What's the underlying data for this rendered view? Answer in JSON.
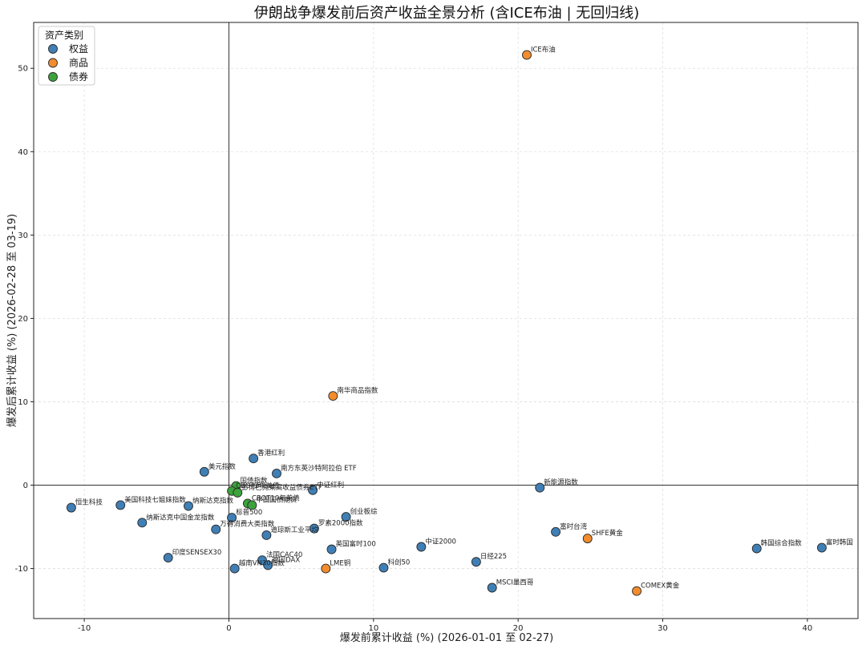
{
  "chart_data": {
    "type": "scatter",
    "title": "伊朗战争爆发前后资产收益全景分析 (含ICE布油 | 无回归线)",
    "xlabel": "爆发前累计收益 (%) (2026-01-01 至 02-27)",
    "ylabel": "爆发后累计收益 (%) (2026-02-28 至 03-19)",
    "xlim": [
      -13.5,
      43.5
    ],
    "ylim": [
      -16,
      55.5
    ],
    "xticks": [
      -10,
      0,
      10,
      20,
      30,
      40
    ],
    "yticks": [
      -10,
      0,
      10,
      20,
      30,
      40,
      50
    ],
    "grid": true,
    "legend": {
      "title": "资产类别",
      "position": "top-left"
    },
    "colors": {
      "权益": "#3f7fb5",
      "商品": "#f28c2e",
      "债券": "#3ca33c"
    },
    "series": [
      {
        "name": "权益",
        "points": [
          {
            "label": "恒生科技",
            "x": -10.9,
            "y": -2.7
          },
          {
            "label": "美国科技七姐妹指数",
            "x": -7.5,
            "y": -2.4
          },
          {
            "label": "纳斯达克指数",
            "x": -2.8,
            "y": -2.5
          },
          {
            "label": "纳斯达克中国金龙指数",
            "x": -6.0,
            "y": -4.5
          },
          {
            "label": "美元指数",
            "x": -1.7,
            "y": 1.6
          },
          {
            "label": "香港红利",
            "x": 1.7,
            "y": 3.2
          },
          {
            "label": "南方东英沙特阿拉伯 ETF",
            "x": 3.3,
            "y": 1.4
          },
          {
            "label": "中证红利",
            "x": 5.8,
            "y": -0.6
          },
          {
            "label": "万得消费大类指数",
            "x": -0.9,
            "y": -5.3
          },
          {
            "label": "标普500",
            "x": 0.2,
            "y": -3.9
          },
          {
            "label": "道琼斯工业平均",
            "x": 2.6,
            "y": -6.0
          },
          {
            "label": "罗素2000指数",
            "x": 5.9,
            "y": -5.2
          },
          {
            "label": "创业板综",
            "x": 8.1,
            "y": -3.8
          },
          {
            "label": "印度SENSEX30",
            "x": -4.2,
            "y": -8.7
          },
          {
            "label": "法国CAC40",
            "x": 2.3,
            "y": -9.0
          },
          {
            "label": "越南VN30指数",
            "x": 0.4,
            "y": -10.0
          },
          {
            "label": "德国DAX",
            "x": 2.7,
            "y": -9.6
          },
          {
            "label": "英国富时100",
            "x": 7.1,
            "y": -7.7
          },
          {
            "label": "科创50",
            "x": 10.7,
            "y": -9.9
          },
          {
            "label": "中证2000",
            "x": 13.3,
            "y": -7.4
          },
          {
            "label": "日经225",
            "x": 17.1,
            "y": -9.2
          },
          {
            "label": "MSCI墨西哥",
            "x": 18.2,
            "y": -12.3
          },
          {
            "label": "富时台湾",
            "x": 22.6,
            "y": -5.6
          },
          {
            "label": "新能源指数",
            "x": 21.5,
            "y": -0.3
          },
          {
            "label": "韩国综合指数",
            "x": 36.5,
            "y": -7.6
          },
          {
            "label": "富时韩国",
            "x": 41.0,
            "y": -7.5
          }
        ]
      },
      {
        "name": "商品",
        "points": [
          {
            "label": "ICE布油",
            "x": 20.6,
            "y": 51.6
          },
          {
            "label": "南华商品指数",
            "x": 7.2,
            "y": 10.7
          },
          {
            "label": "SHFE黄金",
            "x": 24.8,
            "y": -6.4
          },
          {
            "label": "COMEX黄金",
            "x": 28.2,
            "y": -12.7
          },
          {
            "label": "LME铜",
            "x": 6.7,
            "y": -10.0
          }
        ]
      },
      {
        "name": "债券",
        "points": [
          {
            "label": "国债指数",
            "x": 0.5,
            "y": -0.1
          },
          {
            "label": "CBOT2年美债",
            "x": 0.2,
            "y": -0.7
          },
          {
            "label": "彭博巴克莱高收益债券ETF",
            "x": 0.6,
            "y": -0.9
          },
          {
            "label": "CBOT10年美债",
            "x": 1.3,
            "y": -2.2
          },
          {
            "label": "中国国债期货",
            "x": 1.6,
            "y": -2.4
          }
        ]
      }
    ]
  }
}
